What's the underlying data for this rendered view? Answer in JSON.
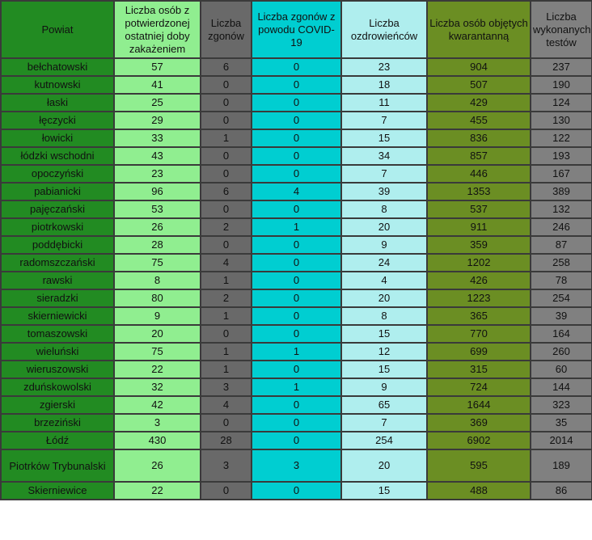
{
  "columns": [
    "Powiat",
    "Liczba osób z potwierdzonej ostatniej doby zakażeniem",
    "Liczba zgonów",
    "Liczba zgonów z powodu COVID-19",
    "Liczba ozdrowieńców",
    "Liczba osób objętych kwarantanną",
    "Liczba wykonanych testów"
  ],
  "column_colors": [
    "#228b22",
    "#90ee90",
    "#696969",
    "#00ced1",
    "#afeeee",
    "#6b8e23",
    "#808080"
  ],
  "rows": [
    [
      "bełchatowski",
      "57",
      "6",
      "0",
      "23",
      "904",
      "237"
    ],
    [
      "kutnowski",
      "41",
      "0",
      "0",
      "18",
      "507",
      "190"
    ],
    [
      "łaski",
      "25",
      "0",
      "0",
      "11",
      "429",
      "124"
    ],
    [
      "łęczycki",
      "29",
      "0",
      "0",
      "7",
      "455",
      "130"
    ],
    [
      "łowicki",
      "33",
      "1",
      "0",
      "15",
      "836",
      "122"
    ],
    [
      "łódzki wschodni",
      "43",
      "0",
      "0",
      "34",
      "857",
      "193"
    ],
    [
      "opoczyński",
      "23",
      "0",
      "0",
      "7",
      "446",
      "167"
    ],
    [
      "pabianicki",
      "96",
      "6",
      "4",
      "39",
      "1353",
      "389"
    ],
    [
      "pajęczański",
      "53",
      "0",
      "0",
      "8",
      "537",
      "132"
    ],
    [
      "piotrkowski",
      "26",
      "2",
      "1",
      "20",
      "911",
      "246"
    ],
    [
      "poddębicki",
      "28",
      "0",
      "0",
      "9",
      "359",
      "87"
    ],
    [
      "radomszczański",
      "75",
      "4",
      "0",
      "24",
      "1202",
      "258"
    ],
    [
      "rawski",
      "8",
      "1",
      "0",
      "4",
      "426",
      "78"
    ],
    [
      "sieradzki",
      "80",
      "2",
      "0",
      "20",
      "1223",
      "254"
    ],
    [
      "skierniewicki",
      "9",
      "1",
      "0",
      "8",
      "365",
      "39"
    ],
    [
      "tomaszowski",
      "20",
      "0",
      "0",
      "15",
      "770",
      "164"
    ],
    [
      "wieluński",
      "75",
      "1",
      "1",
      "12",
      "699",
      "260"
    ],
    [
      "wieruszowski",
      "22",
      "1",
      "0",
      "15",
      "315",
      "60"
    ],
    [
      "zduńskowolski",
      "32",
      "3",
      "1",
      "9",
      "724",
      "144"
    ],
    [
      "zgierski",
      "42",
      "4",
      "0",
      "65",
      "1644",
      "323"
    ],
    [
      "brzeziński",
      "3",
      "0",
      "0",
      "7",
      "369",
      "35"
    ],
    [
      "Łódź",
      "430",
      "28",
      "0",
      "254",
      "6902",
      "2014"
    ],
    [
      "Piotrków Trybunalski",
      "26",
      "3",
      "3",
      "20",
      "595",
      "189"
    ],
    [
      "Skierniewice",
      "22",
      "0",
      "0",
      "15",
      "488",
      "86"
    ]
  ]
}
